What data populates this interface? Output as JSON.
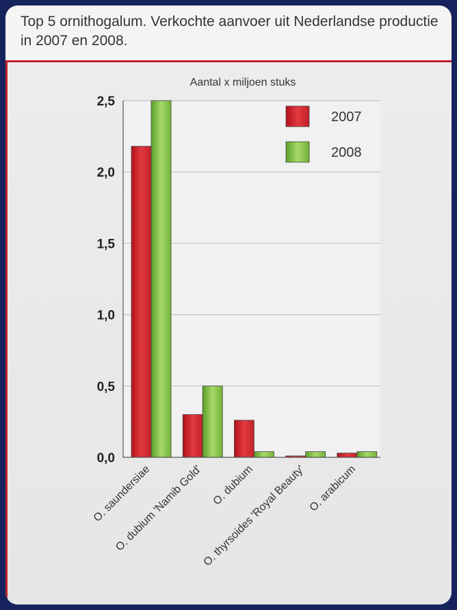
{
  "title": "Top 5 ornithogalum. Verkochte aanvoer uit Nederlandse productie in 2007 en 2008.",
  "chart_data": {
    "type": "bar",
    "ylabel": "Aantal x miljoen stuks",
    "ylim": [
      0,
      2.5
    ],
    "yticks": [
      "0,0",
      "0,5",
      "1,0",
      "1,5",
      "2,0",
      "2,5"
    ],
    "ytick_values": [
      0,
      0.5,
      1.0,
      1.5,
      2.0,
      2.5
    ],
    "categories": [
      "O. saundersiae",
      "O. dubium 'Namib Gold'",
      "O. dubium",
      "O. thyrsoides 'Royal Beauty'",
      "O. arabicum"
    ],
    "series": [
      {
        "name": "2007",
        "values": [
          2.18,
          0.3,
          0.26,
          0.01,
          0.03
        ],
        "color": "#c8202a"
      },
      {
        "name": "2008",
        "values": [
          2.5,
          0.5,
          0.04,
          0.04,
          0.04
        ],
        "color": "#6aa82c"
      }
    ],
    "legend_position": "top-right",
    "grid": true
  },
  "colors": {
    "accent": "#c0202a",
    "frame": "#16235c"
  }
}
